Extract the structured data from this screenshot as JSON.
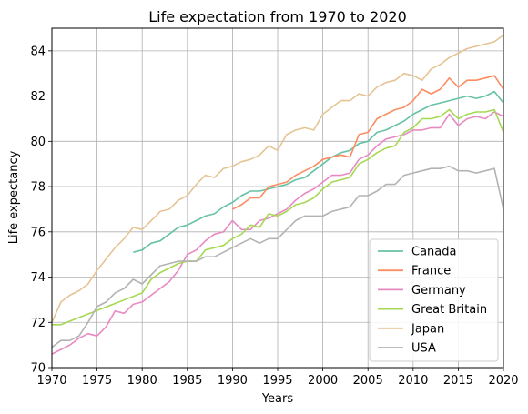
{
  "chart_data": {
    "type": "line",
    "title": "Life expectation from 1970 to 2020",
    "xlabel": "Years",
    "ylabel": "Life expectancy",
    "xlim": [
      1970,
      2020
    ],
    "ylim": [
      70,
      85
    ],
    "xticks": [
      "1970",
      "1975",
      "1980",
      "1985",
      "1990",
      "1995",
      "2000",
      "2005",
      "2010",
      "2015",
      "2020"
    ],
    "yticks": [
      "70",
      "72",
      "74",
      "76",
      "78",
      "80",
      "82",
      "84"
    ],
    "grid": true,
    "legend_position": "lower-right",
    "series": [
      {
        "name": "Canada",
        "color": "#66c2a5",
        "x": [
          1979,
          1980,
          1981,
          1982,
          1983,
          1984,
          1985,
          1986,
          1987,
          1988,
          1989,
          1990,
          1991,
          1992,
          1993,
          1994,
          1995,
          1996,
          1997,
          1998,
          1999,
          2000,
          2001,
          2002,
          2003,
          2004,
          2005,
          2006,
          2007,
          2008,
          2009,
          2010,
          2011,
          2012,
          2013,
          2014,
          2015,
          2016,
          2017,
          2018,
          2019,
          2020
        ],
        "y": [
          75.1,
          75.2,
          75.5,
          75.6,
          75.9,
          76.2,
          76.3,
          76.5,
          76.7,
          76.8,
          77.1,
          77.3,
          77.6,
          77.8,
          77.8,
          77.9,
          78.0,
          78.1,
          78.3,
          78.4,
          78.7,
          79.0,
          79.3,
          79.5,
          79.6,
          79.9,
          80.0,
          80.4,
          80.5,
          80.7,
          80.9,
          81.2,
          81.4,
          81.6,
          81.7,
          81.8,
          81.9,
          82.0,
          81.9,
          82.0,
          82.2,
          81.7
        ]
      },
      {
        "name": "France",
        "color": "#fc8d62",
        "x": [
          1990,
          1991,
          1992,
          1993,
          1994,
          1995,
          1996,
          1997,
          1998,
          1999,
          2000,
          2001,
          2002,
          2003,
          2004,
          2005,
          2006,
          2007,
          2008,
          2009,
          2010,
          2011,
          2012,
          2013,
          2014,
          2015,
          2016,
          2017,
          2018,
          2019,
          2020
        ],
        "y": [
          77.0,
          77.2,
          77.5,
          77.5,
          78.0,
          78.1,
          78.2,
          78.5,
          78.7,
          78.9,
          79.2,
          79.3,
          79.4,
          79.3,
          80.3,
          80.4,
          81.0,
          81.2,
          81.4,
          81.5,
          81.8,
          82.3,
          82.1,
          82.3,
          82.8,
          82.4,
          82.7,
          82.7,
          82.8,
          82.9,
          82.3
        ]
      },
      {
        "name": "Germany",
        "color": "#e78ac3",
        "x": [
          1970,
          1971,
          1972,
          1973,
          1974,
          1975,
          1976,
          1977,
          1978,
          1979,
          1980,
          1981,
          1982,
          1983,
          1984,
          1985,
          1986,
          1987,
          1988,
          1989,
          1990,
          1991,
          1992,
          1993,
          1994,
          1995,
          1996,
          1997,
          1998,
          1999,
          2000,
          2001,
          2002,
          2003,
          2004,
          2005,
          2006,
          2007,
          2008,
          2009,
          2010,
          2011,
          2012,
          2013,
          2014,
          2015,
          2016,
          2017,
          2018,
          2019,
          2020
        ],
        "y": [
          70.6,
          70.8,
          71.0,
          71.3,
          71.5,
          71.4,
          71.8,
          72.5,
          72.4,
          72.8,
          72.9,
          73.2,
          73.5,
          73.8,
          74.3,
          75.0,
          75.2,
          75.6,
          75.9,
          76.0,
          76.5,
          76.1,
          76.1,
          76.5,
          76.6,
          76.8,
          77.0,
          77.4,
          77.7,
          77.9,
          78.2,
          78.5,
          78.5,
          78.6,
          79.2,
          79.4,
          79.8,
          80.1,
          80.2,
          80.3,
          80.5,
          80.5,
          80.6,
          80.6,
          81.2,
          80.7,
          81.0,
          81.1,
          81.0,
          81.3,
          81.1
        ]
      },
      {
        "name": "Great Britain",
        "color": "#a6d854",
        "x": [
          1970,
          1971,
          1980,
          1981,
          1982,
          1983,
          1984,
          1985,
          1986,
          1987,
          1988,
          1989,
          1990,
          1991,
          1992,
          1993,
          1994,
          1995,
          1996,
          1997,
          1998,
          1999,
          2000,
          2001,
          2002,
          2003,
          2004,
          2005,
          2006,
          2007,
          2008,
          2009,
          2010,
          2011,
          2012,
          2013,
          2014,
          2015,
          2016,
          2017,
          2018,
          2019,
          2020
        ],
        "y": [
          71.9,
          71.9,
          73.3,
          73.9,
          74.2,
          74.4,
          74.6,
          74.7,
          74.7,
          75.2,
          75.3,
          75.4,
          75.7,
          75.9,
          76.3,
          76.2,
          76.8,
          76.7,
          76.9,
          77.2,
          77.3,
          77.5,
          77.9,
          78.2,
          78.3,
          78.4,
          79.0,
          79.2,
          79.5,
          79.7,
          79.8,
          80.4,
          80.6,
          81.0,
          81.0,
          81.1,
          81.4,
          81.0,
          81.2,
          81.3,
          81.3,
          81.4,
          80.4
        ]
      },
      {
        "name": "Japan",
        "color": "#e5c494",
        "x": [
          1970,
          1971,
          1972,
          1973,
          1974,
          1975,
          1976,
          1977,
          1978,
          1979,
          1980,
          1981,
          1982,
          1983,
          1984,
          1985,
          1986,
          1987,
          1988,
          1989,
          1990,
          1991,
          1992,
          1993,
          1994,
          1995,
          1996,
          1997,
          1998,
          1999,
          2000,
          2001,
          2002,
          2003,
          2004,
          2005,
          2006,
          2007,
          2008,
          2009,
          2010,
          2011,
          2012,
          2013,
          2014,
          2015,
          2016,
          2017,
          2018,
          2019,
          2020
        ],
        "y": [
          72.0,
          72.9,
          73.2,
          73.4,
          73.7,
          74.3,
          74.8,
          75.3,
          75.7,
          76.2,
          76.1,
          76.5,
          76.9,
          77.0,
          77.4,
          77.6,
          78.1,
          78.5,
          78.4,
          78.8,
          78.9,
          79.1,
          79.2,
          79.4,
          79.8,
          79.6,
          80.3,
          80.5,
          80.6,
          80.5,
          81.2,
          81.5,
          81.8,
          81.8,
          82.1,
          82.0,
          82.4,
          82.6,
          82.7,
          83.0,
          82.9,
          82.7,
          83.2,
          83.4,
          83.7,
          83.9,
          84.1,
          84.2,
          84.3,
          84.4,
          84.7
        ]
      },
      {
        "name": "USA",
        "color": "#b3b3b3",
        "x": [
          1970,
          1971,
          1972,
          1973,
          1974,
          1975,
          1976,
          1977,
          1978,
          1979,
          1980,
          1981,
          1982,
          1983,
          1984,
          1985,
          1986,
          1987,
          1988,
          1989,
          1990,
          1991,
          1992,
          1993,
          1994,
          1995,
          1996,
          1997,
          1998,
          1999,
          2000,
          2001,
          2002,
          2003,
          2004,
          2005,
          2006,
          2007,
          2008,
          2009,
          2010,
          2011,
          2012,
          2013,
          2014,
          2015,
          2016,
          2017,
          2018,
          2019,
          2020
        ],
        "y": [
          70.9,
          71.2,
          71.2,
          71.4,
          72.0,
          72.7,
          72.9,
          73.3,
          73.5,
          73.9,
          73.7,
          74.1,
          74.5,
          74.6,
          74.7,
          74.7,
          74.7,
          74.9,
          74.9,
          75.1,
          75.3,
          75.5,
          75.7,
          75.5,
          75.7,
          75.7,
          76.1,
          76.5,
          76.7,
          76.7,
          76.7,
          76.9,
          77.0,
          77.1,
          77.6,
          77.6,
          77.8,
          78.1,
          78.1,
          78.5,
          78.6,
          78.7,
          78.8,
          78.8,
          78.9,
          78.7,
          78.7,
          78.6,
          78.7,
          78.8,
          77.0
        ]
      }
    ]
  }
}
